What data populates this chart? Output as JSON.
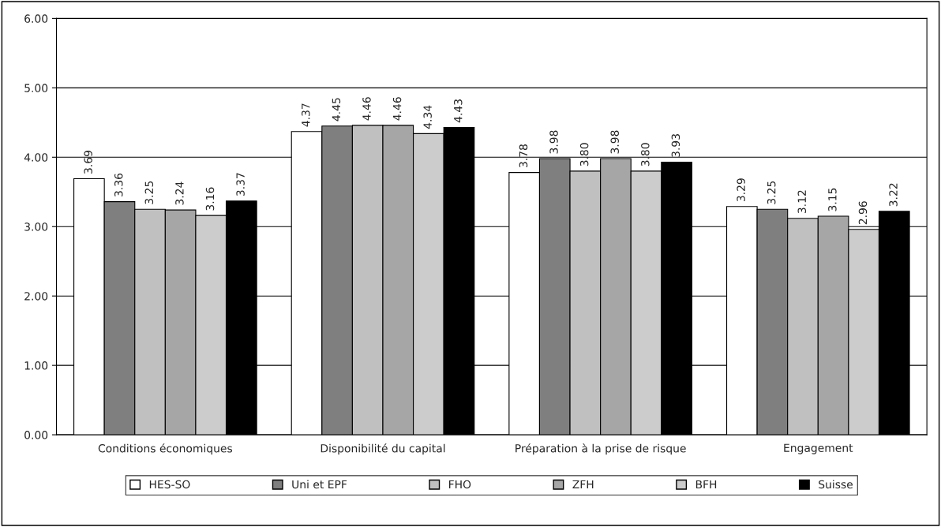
{
  "chart_data": {
    "type": "bar",
    "categories": [
      "Conditions économiques",
      "Disponibilité du capital",
      "Préparation à la prise de risque",
      "Engagement"
    ],
    "series": [
      {
        "name": "HES-SO",
        "color": "#ffffff",
        "values": [
          3.69,
          4.37,
          3.78,
          3.29
        ],
        "value_labels": [
          "3.69",
          "4.37",
          "3.78",
          "3.29"
        ]
      },
      {
        "name": "Uni et EPF",
        "color": "#7f7f7f",
        "values": [
          3.36,
          4.45,
          3.98,
          3.25
        ],
        "value_labels": [
          "3.36",
          "4.45",
          "3.98",
          "3.25"
        ]
      },
      {
        "name": "FHO",
        "color": "#c0c0c0",
        "values": [
          3.25,
          4.46,
          3.8,
          3.12
        ],
        "value_labels": [
          "3.25",
          "4.46",
          "3.80",
          "3.12"
        ]
      },
      {
        "name": "ZFH",
        "color": "#a6a6a6",
        "values": [
          3.24,
          4.46,
          3.98,
          3.15
        ],
        "value_labels": [
          "3.24",
          "4.46",
          "3.98",
          "3.15"
        ]
      },
      {
        "name": "BFH",
        "color": "#cccccc",
        "values": [
          3.16,
          4.34,
          3.8,
          2.96
        ],
        "value_labels": [
          "3.16",
          "4.34",
          "3.80",
          "2.96"
        ]
      },
      {
        "name": "Suisse",
        "color": "#000000",
        "values": [
          3.37,
          4.43,
          3.93,
          3.22
        ],
        "value_labels": [
          "3.37",
          "4.43",
          "3.93",
          "3.22"
        ]
      }
    ],
    "ylim": [
      0,
      6
    ],
    "yticks": [
      {
        "value": 0,
        "label": "0.00"
      },
      {
        "value": 1,
        "label": "1.00"
      },
      {
        "value": 2,
        "label": "2.00"
      },
      {
        "value": 3,
        "label": "3.00"
      },
      {
        "value": 4,
        "label": "4.00"
      },
      {
        "value": 5,
        "label": "5.00"
      },
      {
        "value": 6,
        "label": "6.00"
      }
    ],
    "grid": "y",
    "legend": "bottom"
  }
}
